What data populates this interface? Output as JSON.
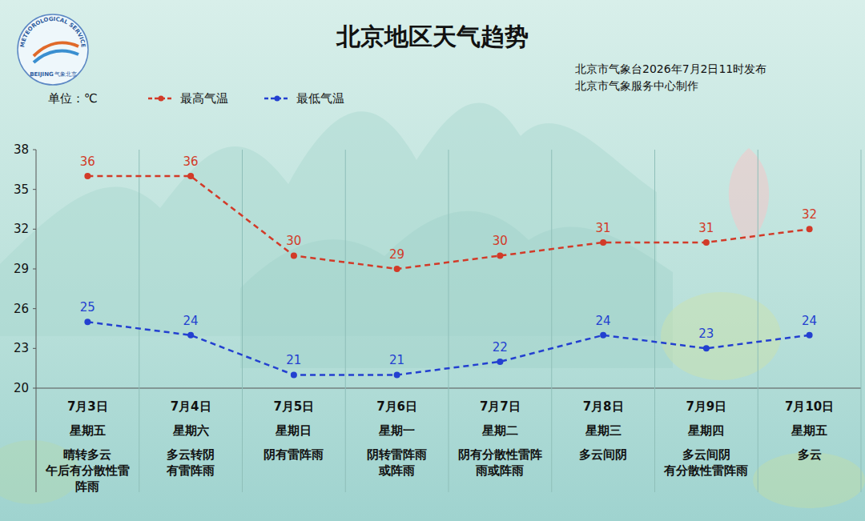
{
  "chart_data": {
    "type": "line",
    "title": "北京地区天气趋势",
    "subtitle": "北京市气象台2026年7月2日11时发布",
    "annotations": [
      "北京市气象服务中心制作"
    ],
    "logo": {
      "text_top": "METEOROLOGICAL SERVICE",
      "text_bottom": "BEIJING",
      "text_cn": "气象北京"
    },
    "y_label": "单位：℃",
    "categories": [
      "7月3日",
      "7月4日",
      "7月5日",
      "7月6日",
      "7月7日",
      "7月8日",
      "7月9日",
      "7月10日"
    ],
    "weekdays": [
      "星期五",
      "星期六",
      "星期日",
      "星期一",
      "星期二",
      "星期三",
      "星期四",
      "星期五"
    ],
    "weather": [
      [
        "晴转多云",
        "午后有分散性雷阵雨"
      ],
      [
        "多云转阴",
        "有雷阵雨"
      ],
      [
        "阴有雷阵雨"
      ],
      [
        "阴转雷阵雨",
        "或阵雨"
      ],
      [
        "阴有分散性雷阵雨或阵雨"
      ],
      [
        "多云间阴"
      ],
      [
        "多云间阴",
        "有分散性雷阵雨"
      ],
      [
        "多云"
      ]
    ],
    "series": [
      {
        "name": "最高气温",
        "color": "#d23a28",
        "marker": "circle",
        "line_style": "dashed",
        "values": [
          36,
          36,
          30,
          29,
          30,
          31,
          31,
          32
        ]
      },
      {
        "name": "最低气温",
        "color": "#2340d0",
        "marker": "circle",
        "line_style": "dashed",
        "values": [
          25,
          24,
          21,
          21,
          22,
          24,
          23,
          24
        ]
      }
    ],
    "ylim": [
      20,
      38
    ],
    "yticks": [
      20,
      23,
      26,
      29,
      32,
      35,
      38
    ],
    "grid": false,
    "legend": "top-left",
    "data_labels": true
  }
}
